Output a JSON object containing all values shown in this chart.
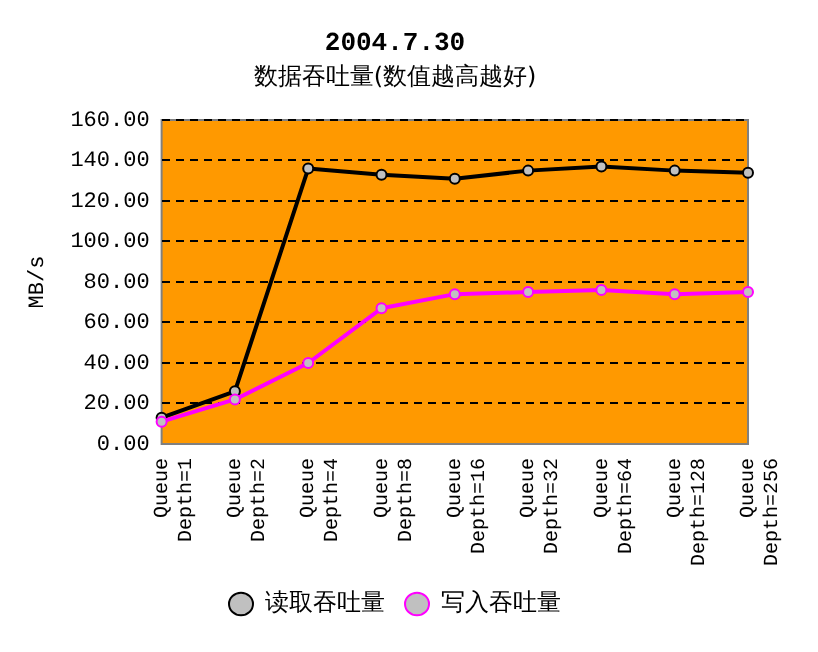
{
  "chart_data": {
    "type": "line",
    "title": "2004.7.30",
    "subtitle": "数据吞吐量(数值越高越好)",
    "ylabel": "MB/s",
    "categories": [
      "Queue Depth=1",
      "Queue Depth=2",
      "Queue Depth=4",
      "Queue Depth=8",
      "Queue Depth=16",
      "Queue Depth=32",
      "Queue Depth=64",
      "Queue Depth=128",
      "Queue Depth=256"
    ],
    "series": [
      {
        "name": "读取吞吐量",
        "color": "#000000",
        "values": [
          13,
          26,
          136,
          133,
          131,
          135,
          137,
          135,
          134
        ]
      },
      {
        "name": "写入吞吐量",
        "color": "#ff00ff",
        "values": [
          11,
          22,
          40,
          67,
          74,
          75,
          76,
          74,
          75
        ]
      }
    ],
    "ylim": [
      0,
      160
    ],
    "yticks": [
      {
        "value": 0,
        "label": "0.00"
      },
      {
        "value": 20,
        "label": "20.00"
      },
      {
        "value": 40,
        "label": "40.00"
      },
      {
        "value": 60,
        "label": "60.00"
      },
      {
        "value": 80,
        "label": "80.00"
      },
      {
        "value": 100,
        "label": "100.00"
      },
      {
        "value": 120,
        "label": "120.00"
      },
      {
        "value": 140,
        "label": "140.00"
      },
      {
        "value": 160,
        "label": "160.00"
      }
    ],
    "grid": "y",
    "legend": "bottom",
    "marker": "circle",
    "line_style": "solid"
  }
}
